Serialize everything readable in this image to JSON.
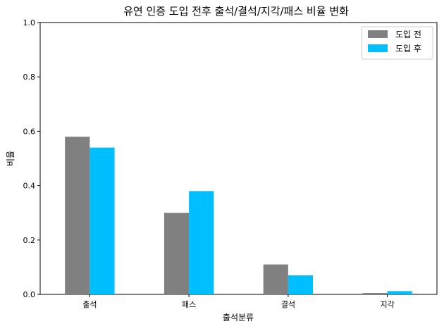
{
  "chart_data": {
    "type": "bar",
    "title": "유연 인증 도입 전후 출석/결석/지각/패스 비율 변화",
    "xlabel": "출석분류",
    "ylabel": "비율",
    "categories": [
      "출석",
      "패스",
      "결석",
      "지각"
    ],
    "series": [
      {
        "name": "도입 전",
        "color": "#808080",
        "values": [
          0.58,
          0.3,
          0.11,
          0.005
        ]
      },
      {
        "name": "도입 후",
        "color": "#00bfff",
        "values": [
          0.54,
          0.38,
          0.07,
          0.012
        ]
      }
    ],
    "ylim": [
      0,
      1.0
    ],
    "yticks": [
      "0.0",
      "0.2",
      "0.4",
      "0.6",
      "0.8",
      "1.0"
    ],
    "grid": false,
    "legend": "top-right"
  }
}
